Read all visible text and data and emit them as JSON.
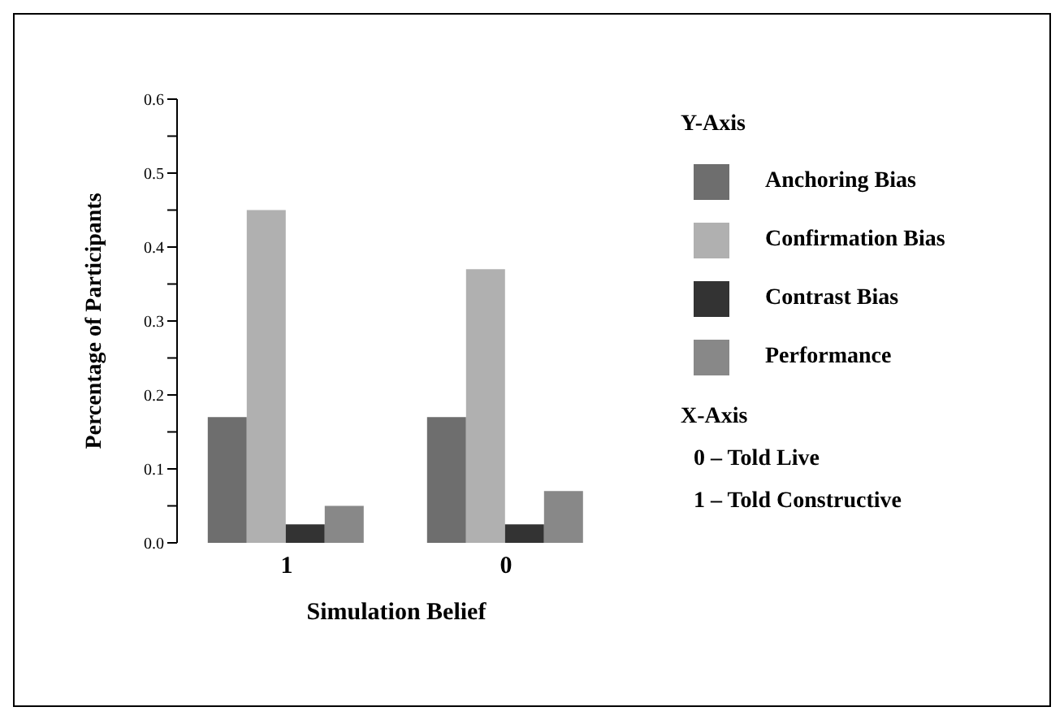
{
  "chart_data": {
    "type": "bar",
    "xlabel": "Simulation Belief",
    "ylabel": "Percentage of Participants",
    "legend_title": "Y-Axis",
    "categories": [
      "1",
      "0"
    ],
    "series": [
      {
        "name": "Anchoring Bias",
        "color": "#6e6e6e",
        "values": [
          0.17,
          0.17
        ]
      },
      {
        "name": "Confirmation Bias",
        "color": "#b0b0b0",
        "values": [
          0.45,
          0.37
        ]
      },
      {
        "name": "Contrast Bias",
        "color": "#333333",
        "values": [
          0.025,
          0.025
        ]
      },
      {
        "name": "Performance",
        "color": "#888888",
        "values": [
          0.05,
          0.07
        ]
      }
    ],
    "ylim": [
      0,
      0.6
    ],
    "yticks": [
      {
        "value": 0,
        "label": "0.0"
      },
      {
        "value": 0.05,
        "label": null
      },
      0.1,
      {
        "value": 0.15,
        "label": null
      },
      0.2,
      {
        "value": 0.25,
        "label": null
      },
      0.3,
      {
        "value": 0.35,
        "label": null
      },
      0.4,
      {
        "value": 0.45,
        "label": null
      },
      0.5,
      {
        "value": 0.55,
        "label": null
      },
      0.6
    ],
    "grid": false,
    "legend": "right",
    "annotations": [
      "X-Axis",
      "0 – Told Live",
      "1 – Told Constructive"
    ]
  }
}
